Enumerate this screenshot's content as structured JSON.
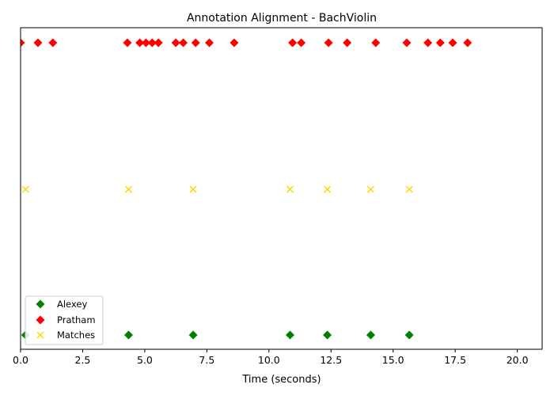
{
  "chart_data": {
    "type": "scatter",
    "title": "Annotation Alignment - BachViolin",
    "xlabel": "Time (seconds)",
    "ylabel": "",
    "xlim": [
      0,
      21
    ],
    "x_ticks": [
      0.0,
      2.5,
      5.0,
      7.5,
      10.0,
      12.5,
      15.0,
      17.5,
      20.0
    ],
    "x_tick_labels": [
      "0.0",
      "2.5",
      "5.0",
      "7.5",
      "10.0",
      "12.5",
      "15.0",
      "17.5",
      "20.0"
    ],
    "y_axis_visible": false,
    "grid": false,
    "legend_position": "lower-left",
    "series": [
      {
        "name": "Alexey",
        "marker": "diamond",
        "color": "#008000",
        "row": 0,
        "x": [
          0.2,
          4.35,
          6.95,
          10.85,
          12.35,
          14.1,
          15.65
        ]
      },
      {
        "name": "Pratham",
        "marker": "diamond",
        "color": "#ff0000",
        "row": 2,
        "x": [
          0.0,
          0.7,
          1.3,
          4.3,
          4.8,
          5.05,
          5.3,
          5.55,
          6.25,
          6.55,
          7.05,
          7.6,
          8.6,
          10.95,
          11.3,
          12.4,
          13.15,
          14.3,
          15.55,
          16.4,
          16.9,
          17.4,
          18.0
        ]
      },
      {
        "name": "Matches",
        "marker": "x",
        "color": "#ffd700",
        "row": 1,
        "x": [
          0.2,
          4.35,
          6.95,
          10.85,
          12.35,
          14.1,
          15.65
        ]
      }
    ]
  }
}
